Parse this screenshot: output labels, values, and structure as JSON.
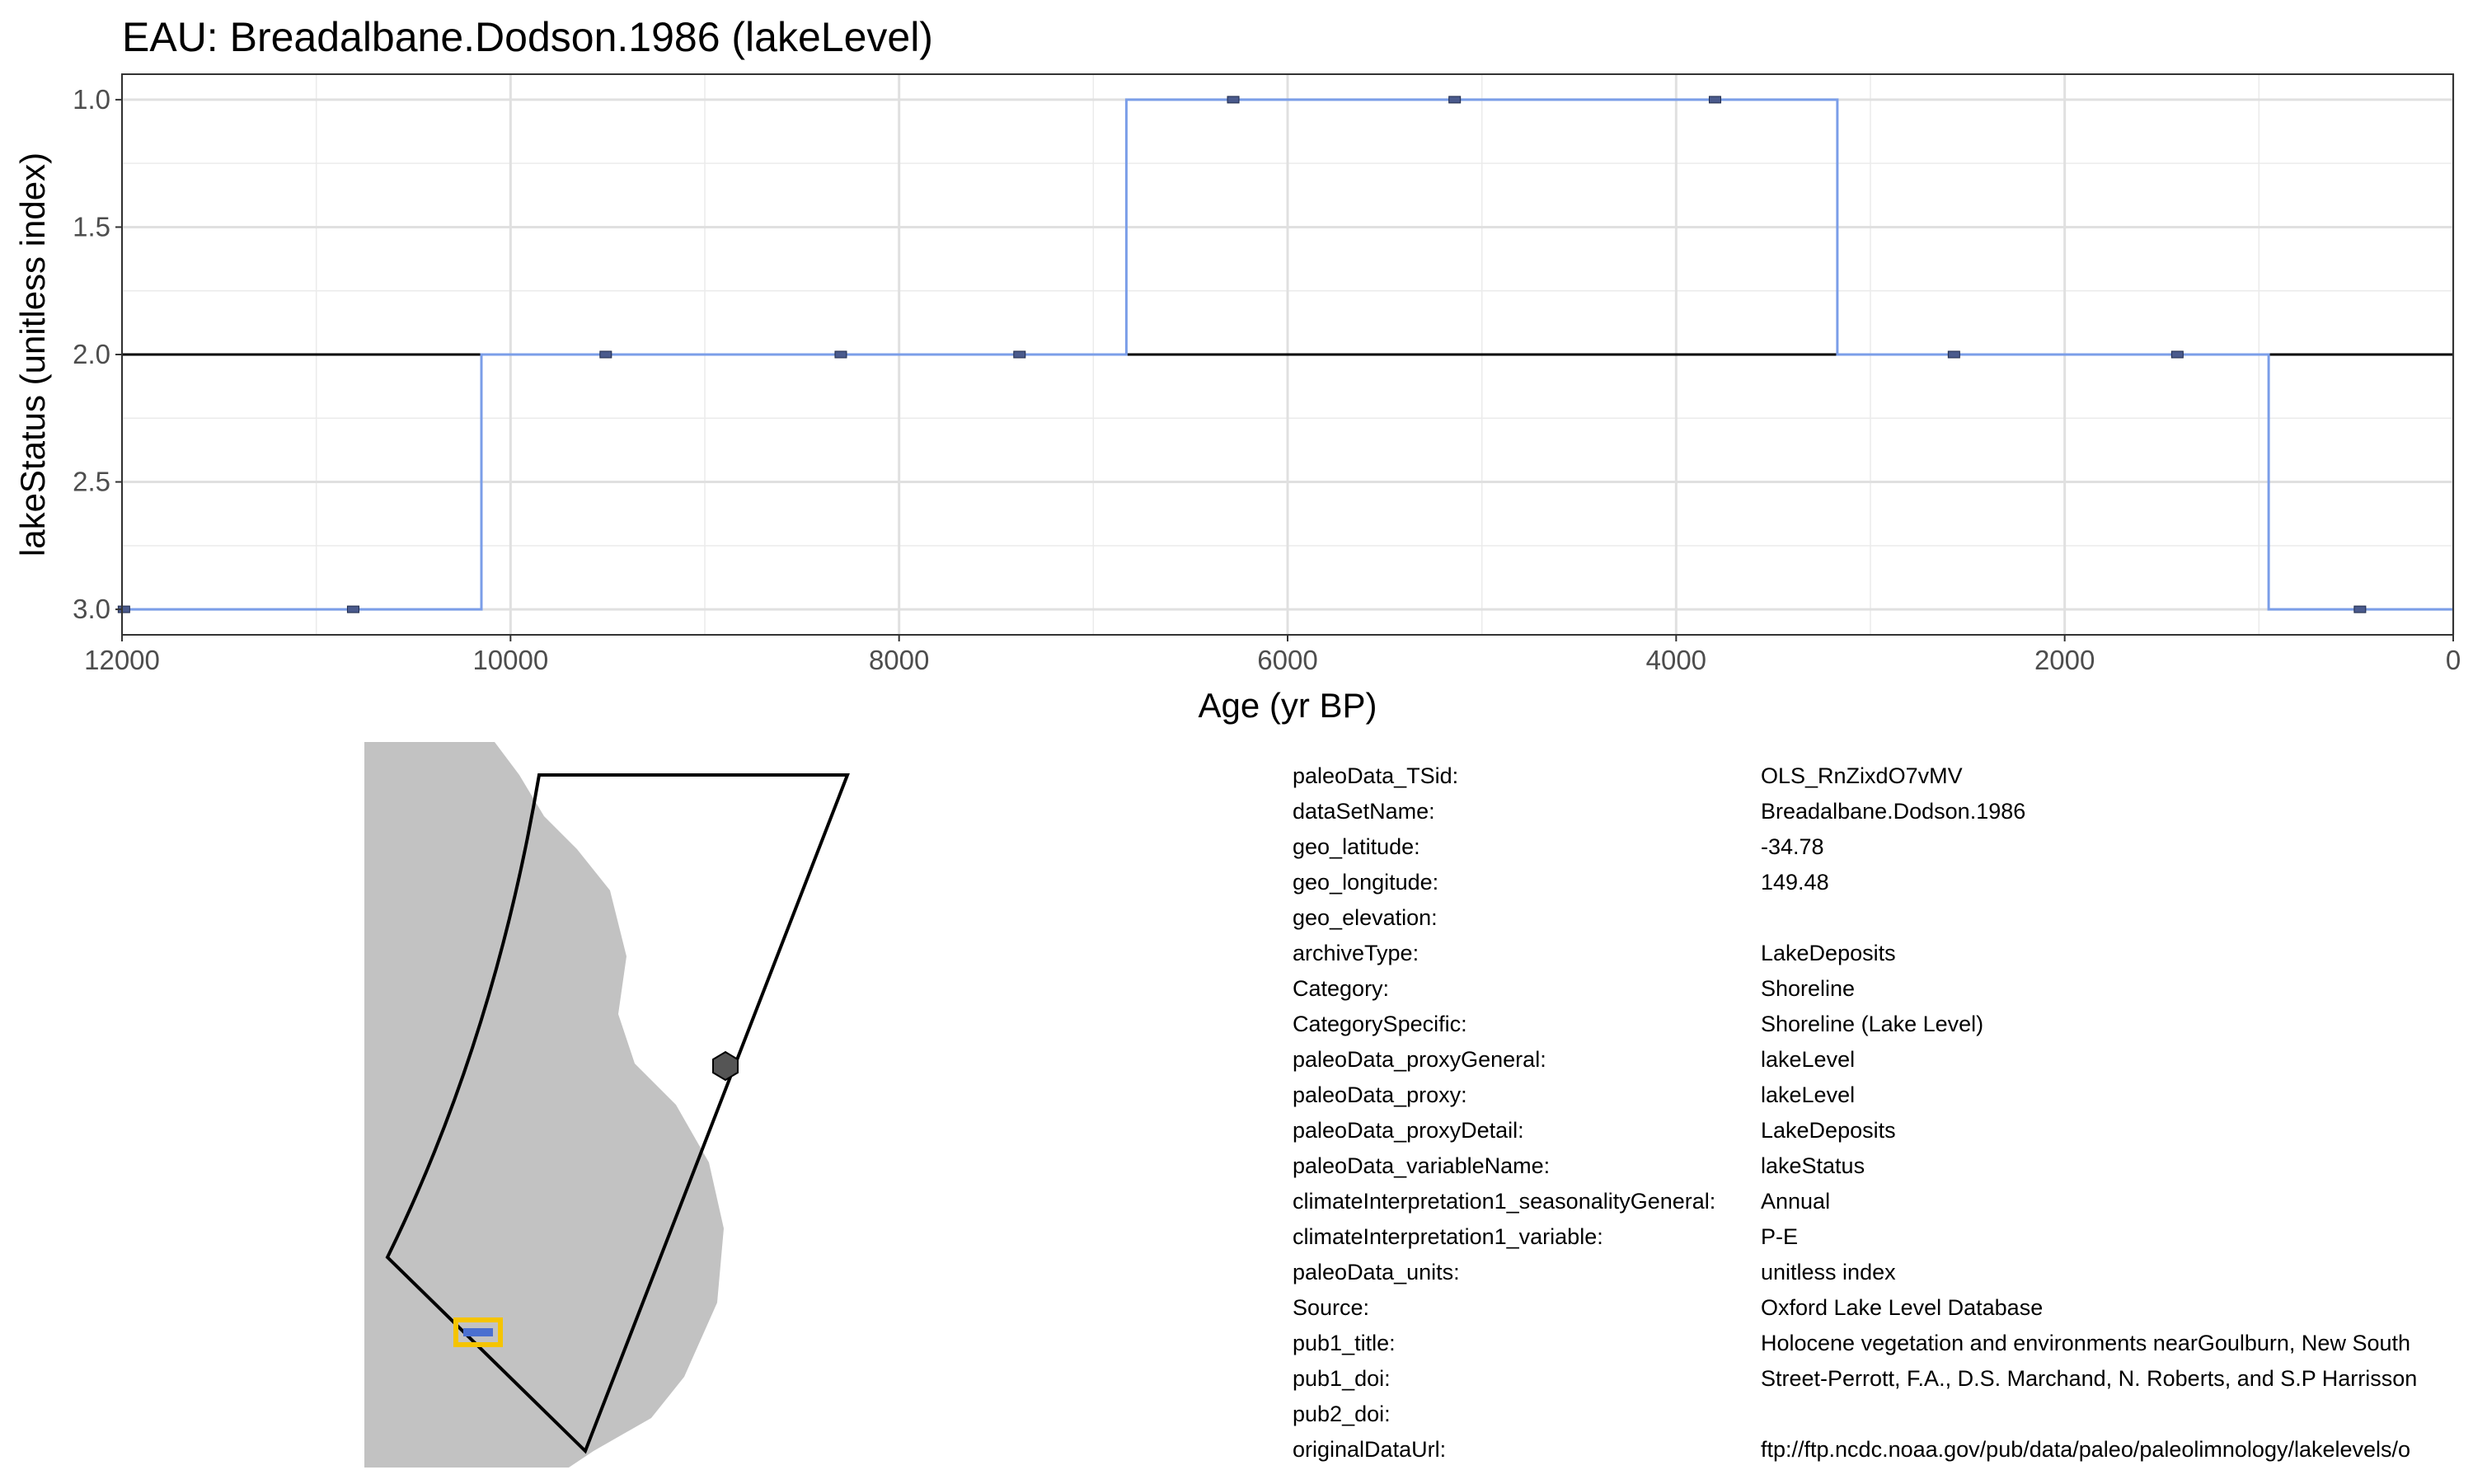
{
  "chart_data": {
    "type": "line",
    "title": "EAU: Breadalbane.Dodson.1986 (lakeLevel)",
    "xlabel": "Age (yr BP)",
    "ylabel": "lakeStatus (unitless index)",
    "xlim": [
      12000,
      0
    ],
    "x_reversed": true,
    "ylim": [
      3.1,
      0.9
    ],
    "y_reversed": true,
    "x_ticks": [
      12000,
      10000,
      8000,
      6000,
      4000,
      2000,
      0
    ],
    "x_tick_labels": [
      "12000",
      "10000",
      "8000",
      "6000",
      "4000",
      "2000",
      "0"
    ],
    "y_ticks": [
      1.0,
      1.5,
      2.0,
      2.5,
      3.0
    ],
    "y_tick_labels": [
      "1.0",
      "1.5",
      "2.0",
      "2.5",
      "3.0"
    ],
    "grid": true,
    "reference_line_y": 2.0,
    "step_series": {
      "color": "#7B9EE8",
      "x": [
        12000,
        10150,
        10150,
        6830,
        6830,
        3170,
        3170,
        950,
        950,
        0
      ],
      "y": [
        3,
        3,
        2,
        2,
        1,
        1,
        2,
        2,
        3,
        3
      ]
    },
    "points": {
      "color": "#4A5A8C",
      "x": [
        11990,
        10810,
        9510,
        8300,
        7380,
        6280,
        5140,
        3800,
        2570,
        1420,
        480
      ],
      "y": [
        3,
        3,
        2,
        2,
        2,
        1,
        1,
        1,
        2,
        2,
        3
      ]
    }
  },
  "map": {
    "land_color": "#C2C2C2",
    "site_marker_color": "#555555",
    "selected_marker_color": "#4A6FD0",
    "selected_marker_outline": "#F5C400"
  },
  "metadata": [
    {
      "key": "paleoData_TSid:",
      "value": "OLS_RnZixdO7vMV"
    },
    {
      "key": "dataSetName:",
      "value": "Breadalbane.Dodson.1986"
    },
    {
      "key": "geo_latitude:",
      "value": "-34.78"
    },
    {
      "key": "geo_longitude:",
      "value": "149.48"
    },
    {
      "key": "geo_elevation:",
      "value": ""
    },
    {
      "key": "archiveType:",
      "value": "LakeDeposits"
    },
    {
      "key": "Category:",
      "value": "Shoreline"
    },
    {
      "key": "CategorySpecific:",
      "value": "Shoreline (Lake Level)"
    },
    {
      "key": "paleoData_proxyGeneral:",
      "value": "lakeLevel"
    },
    {
      "key": "paleoData_proxy:",
      "value": "lakeLevel"
    },
    {
      "key": "paleoData_proxyDetail:",
      "value": "LakeDeposits"
    },
    {
      "key": "paleoData_variableName:",
      "value": "lakeStatus"
    },
    {
      "key": "climateInterpretation1_seasonalityGeneral:",
      "value": "Annual"
    },
    {
      "key": "climateInterpretation1_variable:",
      "value": "P-E"
    },
    {
      "key": "paleoData_units:",
      "value": "unitless index"
    },
    {
      "key": "Source:",
      "value": "Oxford Lake Level Database"
    },
    {
      "key": "pub1_title:",
      "value": "Holocene vegetation and environments nearGoulburn, New South"
    },
    {
      "key": "pub1_doi:",
      "value": "Street-Perrott, F.A., D.S. Marchand, N. Roberts, and S.P Harrisson"
    },
    {
      "key": "pub2_doi:",
      "value": ""
    },
    {
      "key": "originalDataUrl:",
      "value": "ftp://ftp.ncdc.noaa.gov/pub/data/paleo/paleolimnology/lakelevels/o"
    }
  ]
}
